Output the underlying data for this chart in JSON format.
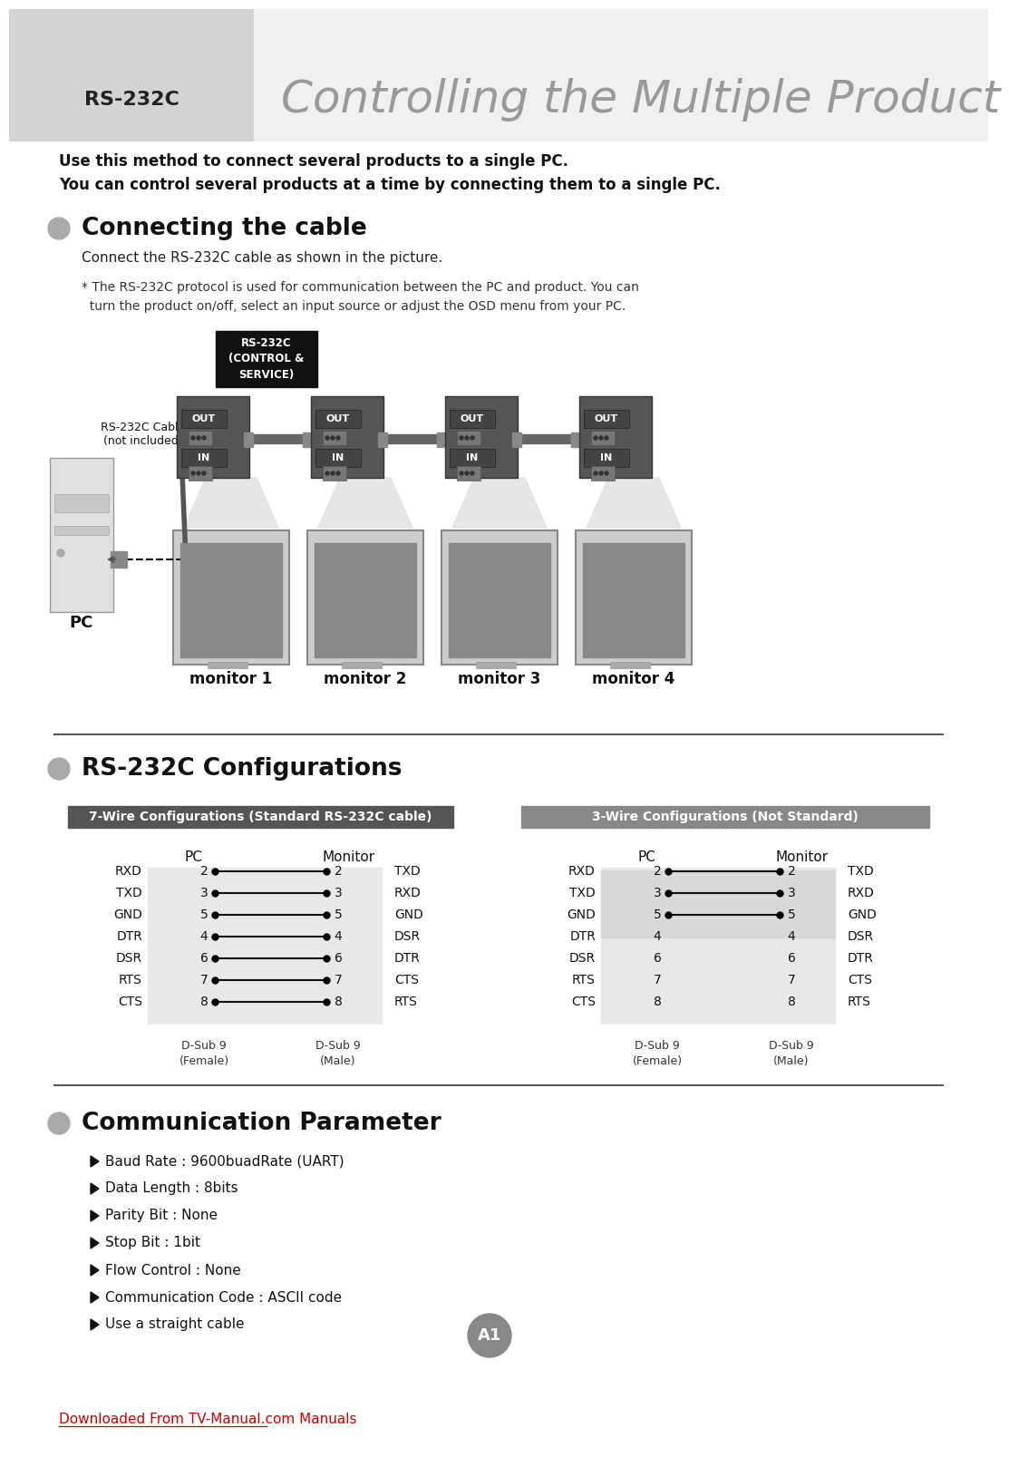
{
  "title_label": "RS-232C",
  "title_main": "Controlling the Multiple Product",
  "header_bg": "#d0d0d0",
  "sidebar_color": "#d3d3d3",
  "intro_bold": "Use this method to connect several products to a single PC.\nYou can control several products at a time by connecting them to a single PC.",
  "section1_title": "Connecting the cable",
  "section1_text1": "Connect the RS-232C cable as shown in the picture.",
  "section1_note": "* The RS-232C protocol is used for communication between the PC and product. You can\n  turn the product on/off, select an input source or adjust the OSD menu from your PC.",
  "rs232c_box_text": "RS-232C\n(CONTROL &\nSERVICE)",
  "cable_label": "RS-232C Cable\n(not included)",
  "monitor_labels": [
    "monitor 1",
    "monitor 2",
    "monitor 3",
    "monitor 4"
  ],
  "pc_label": "PC",
  "section2_title": "RS-232C Configurations",
  "wire7_title": "7-Wire Configurations (Standard RS-232C cable)",
  "wire3_title": "3-Wire Configurations (Not Standard)",
  "wire7_pc_labels": [
    "RXD",
    "TXD",
    "GND",
    "DTR",
    "DSR",
    "RTS",
    "CTS"
  ],
  "wire7_pc_pins": [
    2,
    3,
    5,
    4,
    6,
    7,
    8
  ],
  "wire7_mon_pins": [
    2,
    3,
    5,
    4,
    6,
    7,
    8
  ],
  "wire7_mon_labels": [
    "TXD",
    "RXD",
    "GND",
    "DSR",
    "DTR",
    "CTS",
    "RTS"
  ],
  "wire7_pc_header": "PC",
  "wire7_mon_header": "Monitor",
  "wire7_dsub_pc": "D-Sub 9\n(Female)",
  "wire7_dsub_mon": "D-Sub 9\n(Male)",
  "wire3_pc_labels": [
    "RXD",
    "TXD",
    "GND",
    "DTR",
    "DSR",
    "RTS",
    "CTS"
  ],
  "wire3_pc_pins": [
    2,
    3,
    5,
    4,
    6,
    7,
    8
  ],
  "wire3_mon_pins": [
    2,
    3,
    5,
    4,
    6,
    7,
    8
  ],
  "wire3_mon_labels": [
    "TXD",
    "RXD",
    "GND",
    "DSR",
    "DTR",
    "CTS",
    "RTS"
  ],
  "wire3_connected": [
    0,
    1,
    2
  ],
  "wire3_pc_header": "PC",
  "wire3_mon_header": "Monitor",
  "wire3_dsub_pc": "D-Sub 9\n(Female)",
  "wire3_dsub_mon": "D-Sub 9\n(Male)",
  "section3_title": "Communication Parameter",
  "comm_params": [
    "Baud Rate : 9600buadRate (UART)",
    "Data Length : 8bits",
    "Parity Bit : None",
    "Stop Bit : 1bit",
    "Flow Control : None",
    "Communication Code : ASCII code",
    "Use a straight cable"
  ],
  "footer_text": "Downloaded From TV-Manual.com Manuals",
  "footer_color": "#cc0000",
  "page_label": "A1",
  "bg_color": "#ffffff"
}
